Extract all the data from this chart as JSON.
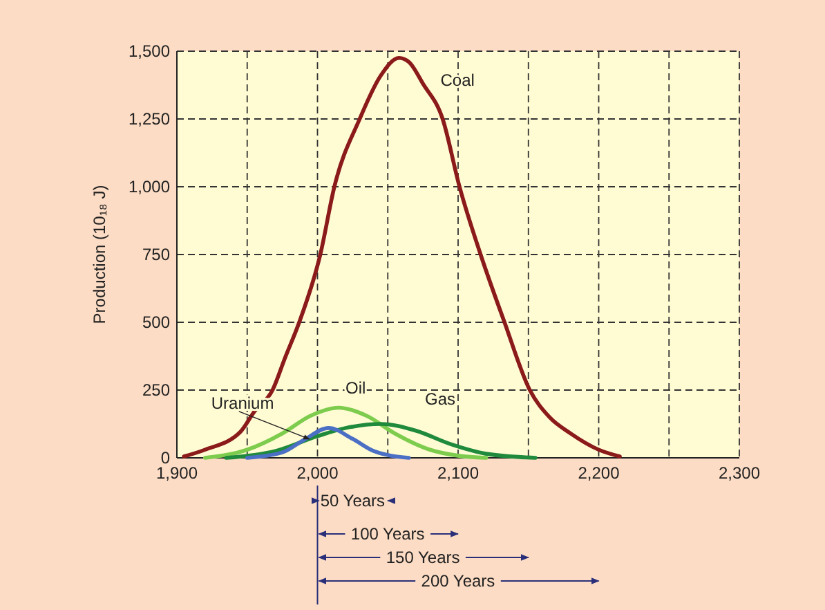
{
  "chart_data": {
    "type": "line",
    "ylabel": "Production (10₁₈ J)",
    "xlim": [
      1900,
      2300
    ],
    "ylim": [
      0,
      1500
    ],
    "xticks": [
      {
        "value": 1900,
        "label": "1,900"
      },
      {
        "value": 1950,
        "label": null
      },
      {
        "value": 2000,
        "label": "2,000"
      },
      {
        "value": 2050,
        "label": null
      },
      {
        "value": 2100,
        "label": "2,100"
      },
      {
        "value": 2150,
        "label": null
      },
      {
        "value": 2200,
        "label": "2,200"
      },
      {
        "value": 2250,
        "label": null
      },
      {
        "value": 2300,
        "label": "2,300"
      }
    ],
    "yticks": [
      0,
      250,
      500,
      750,
      {
        "value": 1000,
        "label": "1,000"
      },
      {
        "value": 1250,
        "label": "1,250"
      },
      {
        "value": 1500,
        "label": "1,500"
      }
    ],
    "grid": true,
    "marker": "none",
    "line_style": "solid",
    "series": [
      {
        "name": "Coal",
        "color": "#8b1a1a",
        "x": [
          1905,
          1920,
          1945,
          1955,
          1968,
          1977,
          1987,
          2002,
          2012,
          2030,
          2045,
          2058,
          2065,
          2075,
          2089,
          2101,
          2116,
          2133,
          2151,
          2165,
          2180,
          2200,
          2215
        ],
        "values": [
          5,
          30,
          95,
          170,
          250,
          370,
          500,
          750,
          1000,
          1250,
          1410,
          1475,
          1460,
          1380,
          1250,
          1000,
          750,
          500,
          250,
          150,
          90,
          30,
          5
        ]
      },
      {
        "name": "Oil",
        "color": "#7dcc4e",
        "x": [
          1920,
          1950,
          1975,
          1995,
          2015,
          2035,
          2055,
          2080,
          2100,
          2120
        ],
        "values": [
          0,
          30,
          90,
          155,
          185,
          155,
          90,
          30,
          8,
          0
        ]
      },
      {
        "name": "Gas",
        "color": "#1f8a3c",
        "x": [
          1935,
          1970,
          2000,
          2020,
          2045,
          2070,
          2095,
          2120,
          2155
        ],
        "values": [
          0,
          25,
          80,
          110,
          125,
          100,
          50,
          15,
          0
        ]
      },
      {
        "name": "Uranium",
        "color": "#4a6fc4",
        "x": [
          1950,
          1975,
          1990,
          2008,
          2025,
          2040,
          2065
        ],
        "values": [
          0,
          20,
          65,
          110,
          70,
          25,
          0
        ]
      }
    ],
    "annotations": [
      "50 Years",
      "100 Years",
      "150 Years",
      "200 Years"
    ]
  }
}
